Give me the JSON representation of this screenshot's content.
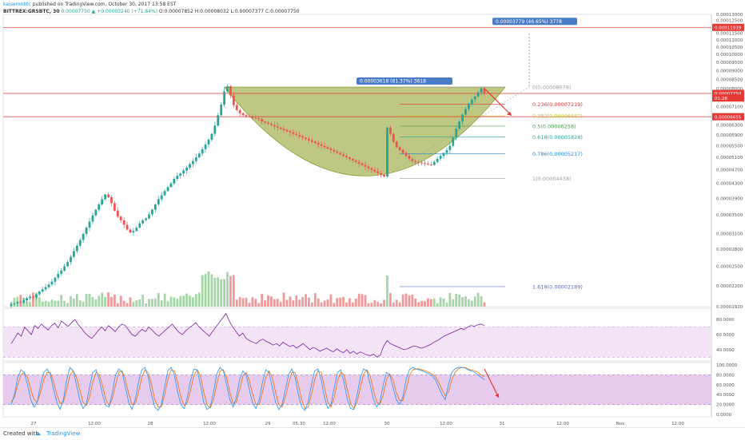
{
  "header": {
    "publisher": "kaiseronbtc",
    "publish_text": "published on TradingView.com, October 30, 2017 13:58 EST",
    "symbol": "BITTREX:GRSBTC, 30",
    "last": "0.00007750",
    "change": "+0.00003240 (+71.84%)",
    "open": "O:0.00007852",
    "high": "H:0.00008032",
    "low": "L:0.00007377",
    "close": "C:0.00007750"
  },
  "colors": {
    "up": "#26a69a",
    "down": "#ef5350",
    "cup_fill": "#8b9a1e",
    "hline": "#e53935",
    "rsi_line": "#7b1fa2",
    "rsi_band": "#f3e5f5",
    "stoch_band": "#e1bee7",
    "stoch_k": "#2196f3",
    "stoch_d": "#ef6c00",
    "volume_up": "#a5d6a7",
    "volume_down": "#ef9a9a"
  },
  "chart_data": {
    "type": "candlestick",
    "price_axis_ticks": [
      "0.00013000",
      "0.00012500",
      "0.00012000",
      "0.00011500",
      "0.00011000",
      "0.00010500",
      "0.00010000",
      "0.00009500",
      "0.00009000",
      "0.00008500",
      "0.00008000",
      "0.00007500",
      "0.00007100",
      "0.00006700",
      "0.00006300",
      "0.00005900",
      "0.00005500",
      "0.00005100",
      "0.00004700",
      "0.00004300",
      "0.00003900",
      "0.00003500",
      "0.00003100",
      "0.00002800",
      "0.00002500",
      "0.00002200",
      "0.00001920"
    ],
    "price_range": [
      1.92e-05,
      0.00013
    ],
    "price_badges": [
      {
        "label": "0.00011939",
        "value": 0.00011939
      },
      {
        "label": "0.00007750",
        "value": 7.75e-05
      },
      {
        "label": "01:28",
        "value": 7.52e-05
      },
      {
        "label": "0.00006655",
        "value": 6.655e-05
      }
    ],
    "horizontal_lines": [
      0.00011939,
      7.75e-05,
      6.655e-05
    ],
    "measure_labels": {
      "target": "0.00003779 (46.65%) 3778",
      "cup": "0.00003618 (81.37%) 3618"
    },
    "fib_levels": [
      {
        "label": "0(0.00008078)",
        "value": 8.078e-05,
        "color": "#9e9e9e"
      },
      {
        "label": "0.236(0.00007219)",
        "value": 7.219e-05,
        "color": "#e53935"
      },
      {
        "label": "0.382(0.00006687)",
        "value": 6.687e-05,
        "color": "#c0ca33"
      },
      {
        "label": "0.5(0.00006258)",
        "value": 6.258e-05,
        "color": "#43a047"
      },
      {
        "label": "0.618(0.00005828)",
        "value": 5.828e-05,
        "color": "#26a69a"
      },
      {
        "label": "0.786(0.00005217)",
        "value": 5.217e-05,
        "color": "#1e88e5"
      },
      {
        "label": "1(0.00004438)",
        "value": 4.438e-05,
        "color": "#9e9e9e"
      },
      {
        "label": "1.618(0.00002189)",
        "value": 2.189e-05,
        "color": "#5c6bc0"
      }
    ],
    "x_axis_labels": [
      "27",
      "12:00",
      "28",
      "12:00",
      "29",
      "05:30",
      "12:00",
      "30",
      "12:00",
      "31",
      "12:00",
      "Nov",
      "12:00"
    ],
    "closes": [
      1.95e-05,
      1.96e-05,
      1.98e-05,
      1.97e-05,
      2e-05,
      2.03e-05,
      2.05e-05,
      2.04e-05,
      2.08e-05,
      2.12e-05,
      2.15e-05,
      2.18e-05,
      2.22e-05,
      2.26e-05,
      2.32e-05,
      2.38e-05,
      2.43e-05,
      2.5e-05,
      2.57e-05,
      2.66e-05,
      2.76e-05,
      2.86e-05,
      2.97e-05,
      3.09e-05,
      3.22e-05,
      3.35e-05,
      3.49e-05,
      3.62e-05,
      3.75e-05,
      3.88e-05,
      4e-05,
      3.93e-05,
      3.78e-05,
      3.6e-05,
      3.46e-05,
      3.38e-05,
      3.28e-05,
      3.18e-05,
      3.12e-05,
      3.15e-05,
      3.22e-05,
      3.31e-05,
      3.38e-05,
      3.42e-05,
      3.51e-05,
      3.62e-05,
      3.75e-05,
      3.88e-05,
      3.98e-05,
      4.09e-05,
      4.2e-05,
      4.3e-05,
      4.43e-05,
      4.52e-05,
      4.59e-05,
      4.68e-05,
      4.77e-05,
      4.88e-05,
      4.98e-05,
      5.1e-05,
      5.23e-05,
      5.38e-05,
      5.55e-05,
      5.72e-05,
      5.95e-05,
      6.28e-05,
      6.72e-05,
      7.2e-05,
      7.85e-05,
      8.12e-05,
      7.65e-05,
      7.18e-05,
      6.95e-05,
      6.81e-05,
      6.72e-05,
      6.67e-05,
      6.64e-05,
      6.61e-05,
      6.58e-05,
      6.55e-05,
      6.45e-05,
      6.4e-05,
      6.35e-05,
      6.3e-05,
      6.25e-05,
      6.2e-05,
      6.15e-05,
      6.1e-05,
      6.05e-05,
      6e-05,
      5.95e-05,
      5.9e-05,
      5.85e-05,
      5.8e-05,
      5.75e-05,
      5.7e-05,
      5.65e-05,
      5.6e-05,
      5.55e-05,
      5.5e-05,
      5.45e-05,
      5.4e-05,
      5.35e-05,
      5.3e-05,
      5.25e-05,
      5.2e-05,
      5.15e-05,
      5.1e-05,
      5.05e-05,
      5e-05,
      4.95e-05,
      4.9e-05,
      4.85e-05,
      4.8e-05,
      4.75e-05,
      4.7e-05,
      4.65e-05,
      4.6e-05,
      4.55e-05,
      4.5e-05,
      6.2e-05,
      5.95e-05,
      5.65e-05,
      5.45e-05,
      5.35e-05,
      5.25e-05,
      5.15e-05,
      5.05e-05,
      4.98e-05,
      4.95e-05,
      4.93e-05,
      4.91e-05,
      4.89e-05,
      4.87e-05,
      4.85e-05,
      4.95e-05,
      5.05e-05,
      5.15e-05,
      5.25e-05,
      5.35e-05,
      5.5e-05,
      5.8e-05,
      6.15e-05,
      6.45e-05,
      6.75e-05,
      7e-05,
      7.25e-05,
      7.45e-05,
      7.6e-05,
      7.8e-05,
      8.01e-05,
      7.75e-05
    ]
  },
  "rsi": {
    "ticks": [
      "80.0000",
      "60.0000",
      "40.0000"
    ],
    "range": [
      25,
      95
    ],
    "values": [
      48,
      55,
      62,
      58,
      70,
      65,
      60,
      72,
      68,
      74,
      70,
      66,
      72,
      75,
      69,
      78,
      74,
      71,
      76,
      80,
      73,
      68,
      62,
      58,
      55,
      60,
      66,
      70,
      65,
      72,
      68,
      64,
      70,
      74,
      72,
      66,
      60,
      58,
      63,
      67,
      64,
      70,
      66,
      61,
      58,
      62,
      66,
      70,
      74,
      68,
      63,
      60,
      65,
      69,
      72,
      76,
      70,
      66,
      62,
      58,
      64,
      70,
      76,
      82,
      88,
      78,
      70,
      64,
      58,
      62,
      55,
      52,
      50,
      48,
      52,
      54,
      51,
      49,
      46,
      48,
      45,
      50,
      47,
      44,
      46,
      42,
      45,
      48,
      44,
      40,
      43,
      41,
      38,
      40,
      42,
      39,
      37,
      41,
      38,
      36,
      40,
      35,
      38,
      34,
      37,
      35,
      33,
      32,
      34,
      30,
      33,
      45,
      52,
      48,
      46,
      44,
      42,
      40,
      41,
      43,
      45,
      44,
      42,
      43,
      45,
      47,
      50,
      52,
      55,
      58,
      60,
      62,
      64,
      66,
      68,
      67,
      70,
      72,
      71,
      73,
      74,
      72
    ],
    "top_band": 70,
    "bottom_band": 30
  },
  "stoch": {
    "ticks": [
      "100.0000",
      "80.0000",
      "60.0000",
      "40.0000",
      "20.0000",
      "0.0000"
    ],
    "range": [
      0,
      100
    ],
    "k": [
      20,
      40,
      75,
      90,
      85,
      60,
      30,
      15,
      25,
      60,
      85,
      92,
      80,
      50,
      25,
      10,
      30,
      70,
      95,
      88,
      60,
      30,
      12,
      20,
      55,
      85,
      90,
      70,
      40,
      18,
      15,
      45,
      80,
      92,
      85,
      55,
      25,
      10,
      30,
      65,
      90,
      95,
      75,
      40,
      15,
      8,
      20,
      55,
      88,
      95,
      80,
      45,
      20,
      12,
      35,
      70,
      92,
      90,
      60,
      25,
      10,
      15,
      45,
      82,
      95,
      88,
      60,
      30,
      15,
      35,
      70,
      88,
      80,
      50,
      22,
      12,
      30,
      65,
      90,
      85,
      55,
      25,
      10,
      20,
      50,
      80,
      92,
      75,
      40,
      15,
      8,
      25,
      60,
      88,
      92,
      70,
      35,
      12,
      20,
      55,
      85,
      90,
      65,
      30,
      12,
      10,
      40,
      75,
      92,
      88,
      60,
      30,
      15,
      25,
      60,
      85,
      80,
      55,
      30,
      20,
      35,
      70,
      90,
      95,
      92,
      90,
      88,
      85,
      82,
      78,
      70,
      55,
      40,
      30,
      60,
      85,
      92,
      95,
      95,
      94,
      90,
      88,
      85,
      80,
      75,
      70
    ],
    "d": [
      25,
      35,
      60,
      80,
      85,
      75,
      50,
      30,
      25,
      45,
      70,
      85,
      85,
      65,
      40,
      22,
      25,
      50,
      80,
      88,
      75,
      50,
      25,
      18,
      35,
      65,
      85,
      80,
      58,
      30,
      18,
      32,
      60,
      85,
      88,
      70,
      42,
      20,
      22,
      45,
      75,
      90,
      85,
      60,
      30,
      15,
      15,
      40,
      70,
      90,
      88,
      65,
      35,
      18,
      25,
      50,
      80,
      90,
      78,
      45,
      20,
      13,
      30,
      62,
      88,
      90,
      75,
      45,
      22,
      25,
      50,
      78,
      85,
      68,
      40,
      20,
      20,
      45,
      75,
      88,
      75,
      45,
      20,
      15,
      35,
      62,
      85,
      85,
      60,
      30,
      12,
      15,
      40,
      70,
      88,
      85,
      55,
      25,
      15,
      35,
      68,
      85,
      80,
      50,
      22,
      12,
      25,
      55,
      82,
      90,
      78,
      48,
      25,
      20,
      40,
      70,
      82,
      70,
      45,
      28,
      28,
      50,
      78,
      90,
      92,
      92,
      90,
      88,
      85,
      82,
      76,
      65,
      50,
      38,
      45,
      70,
      85,
      92,
      95,
      95,
      92,
      90,
      88,
      85,
      80,
      76
    ]
  },
  "footer": {
    "created_with": "Created with",
    "brand": "TradingView"
  }
}
